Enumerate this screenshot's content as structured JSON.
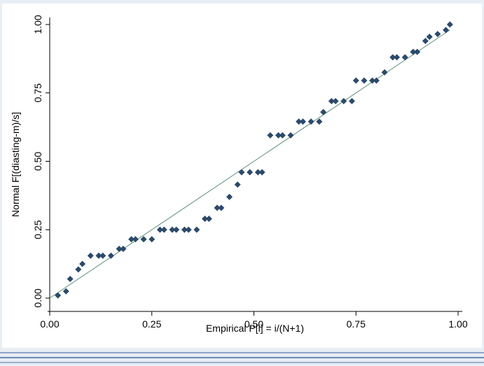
{
  "chart_data": {
    "type": "scatter",
    "xlabel": "Empirical P[i] = i/(N+1)",
    "ylabel": "Normal F[(diasting-m)/s]",
    "xlim": [
      0,
      1
    ],
    "ylim": [
      0,
      1
    ],
    "xticks": [
      "0.00",
      "0.25",
      "0.50",
      "0.75",
      "1.00"
    ],
    "yticks": [
      "0.00",
      "0.25",
      "0.50",
      "0.75",
      "1.00"
    ],
    "grid": false,
    "reference_line": {
      "from": [
        0,
        0
      ],
      "to": [
        0.98,
        0.98
      ]
    },
    "marker_color": "#2b4a6b",
    "line_color": "#5f8f7f",
    "points": [
      [
        0.02,
        0.01
      ],
      [
        0.04,
        0.025
      ],
      [
        0.05,
        0.07
      ],
      [
        0.07,
        0.105
      ],
      [
        0.08,
        0.125
      ],
      [
        0.1,
        0.155
      ],
      [
        0.12,
        0.155
      ],
      [
        0.13,
        0.155
      ],
      [
        0.15,
        0.155
      ],
      [
        0.17,
        0.18
      ],
      [
        0.18,
        0.18
      ],
      [
        0.2,
        0.215
      ],
      [
        0.21,
        0.215
      ],
      [
        0.23,
        0.215
      ],
      [
        0.25,
        0.215
      ],
      [
        0.27,
        0.25
      ],
      [
        0.28,
        0.25
      ],
      [
        0.3,
        0.25
      ],
      [
        0.31,
        0.25
      ],
      [
        0.33,
        0.25
      ],
      [
        0.34,
        0.25
      ],
      [
        0.36,
        0.25
      ],
      [
        0.38,
        0.29
      ],
      [
        0.39,
        0.29
      ],
      [
        0.41,
        0.33
      ],
      [
        0.42,
        0.33
      ],
      [
        0.44,
        0.37
      ],
      [
        0.46,
        0.415
      ],
      [
        0.47,
        0.46
      ],
      [
        0.49,
        0.46
      ],
      [
        0.51,
        0.46
      ],
      [
        0.52,
        0.46
      ],
      [
        0.54,
        0.595
      ],
      [
        0.56,
        0.595
      ],
      [
        0.57,
        0.595
      ],
      [
        0.59,
        0.595
      ],
      [
        0.61,
        0.645
      ],
      [
        0.62,
        0.645
      ],
      [
        0.64,
        0.645
      ],
      [
        0.66,
        0.645
      ],
      [
        0.67,
        0.68
      ],
      [
        0.69,
        0.72
      ],
      [
        0.7,
        0.72
      ],
      [
        0.72,
        0.72
      ],
      [
        0.74,
        0.72
      ],
      [
        0.75,
        0.795
      ],
      [
        0.77,
        0.795
      ],
      [
        0.79,
        0.795
      ],
      [
        0.8,
        0.795
      ],
      [
        0.82,
        0.825
      ],
      [
        0.84,
        0.88
      ],
      [
        0.85,
        0.88
      ],
      [
        0.87,
        0.88
      ],
      [
        0.89,
        0.9
      ],
      [
        0.9,
        0.9
      ],
      [
        0.92,
        0.94
      ],
      [
        0.93,
        0.955
      ],
      [
        0.95,
        0.965
      ],
      [
        0.97,
        0.98
      ],
      [
        0.98,
        1.0
      ]
    ]
  }
}
